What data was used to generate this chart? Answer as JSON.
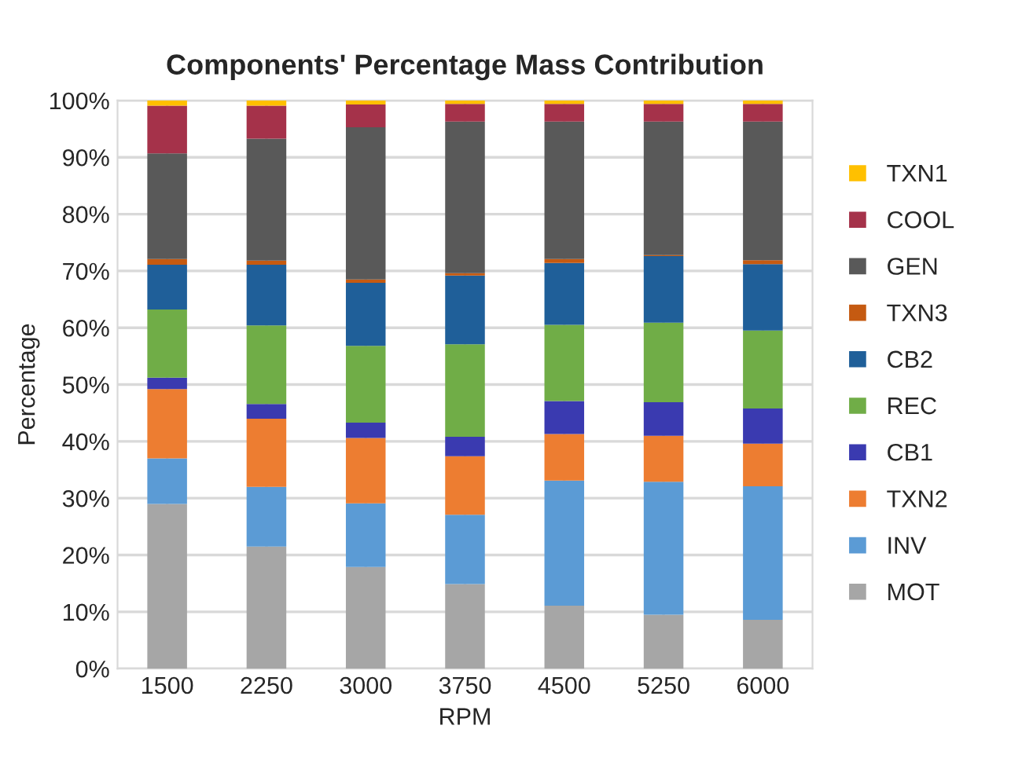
{
  "chart_data": {
    "type": "bar",
    "stacked": true,
    "title": "Components' Percentage Mass Contribution",
    "xlabel": "RPM",
    "ylabel": "Percentage",
    "categories": [
      "1500",
      "2250",
      "3000",
      "3750",
      "4500",
      "5250",
      "6000"
    ],
    "series": [
      {
        "name": "MOT",
        "color": "#a6a6a6",
        "values": [
          29,
          21.5,
          17.9,
          14.9,
          11.1,
          9.5,
          8.6
        ]
      },
      {
        "name": "INV",
        "color": "#5b9bd5",
        "values": [
          8,
          10.5,
          11.2,
          12.2,
          22,
          23.4,
          23.5
        ]
      },
      {
        "name": "TXN2",
        "color": "#ed7d31",
        "values": [
          12.2,
          12,
          11.5,
          10.3,
          8.2,
          8.1,
          7.5
        ]
      },
      {
        "name": "CB1",
        "color": "#3a3ab0",
        "values": [
          2,
          2.6,
          2.7,
          3.4,
          5.8,
          5.9,
          6.2
        ]
      },
      {
        "name": "REC",
        "color": "#70ad47",
        "values": [
          12,
          13.8,
          13.5,
          16.3,
          13.4,
          14,
          13.7
        ]
      },
      {
        "name": "CB2",
        "color": "#1f5f99",
        "values": [
          7.9,
          10.7,
          11.1,
          12.1,
          10.9,
          11.7,
          11.7
        ]
      },
      {
        "name": "TXN3",
        "color": "#c55a11",
        "values": [
          1,
          0.7,
          0.6,
          0.4,
          0.7,
          0.2,
          0.7
        ]
      },
      {
        "name": "GEN",
        "color": "#595959",
        "values": [
          18.6,
          21.5,
          26.8,
          26.7,
          24.2,
          23.5,
          24.4
        ]
      },
      {
        "name": "COOL",
        "color": "#a5324a",
        "values": [
          8.4,
          5.8,
          4,
          3.1,
          3.1,
          3.1,
          3.1
        ]
      },
      {
        "name": "TXN1",
        "color": "#ffc000",
        "values": [
          0.9,
          0.9,
          0.7,
          0.6,
          0.6,
          0.6,
          0.6
        ]
      }
    ],
    "ylim": [
      0,
      100
    ],
    "yticks": [
      {
        "value": 0,
        "label": "0%"
      },
      {
        "value": 10,
        "label": "10%"
      },
      {
        "value": 20,
        "label": "20%"
      },
      {
        "value": 30,
        "label": "30%"
      },
      {
        "value": 40,
        "label": "40%"
      },
      {
        "value": 50,
        "label": "50%"
      },
      {
        "value": 60,
        "label": "60%"
      },
      {
        "value": 70,
        "label": "70%"
      },
      {
        "value": 80,
        "label": "80%"
      },
      {
        "value": 90,
        "label": "90%"
      },
      {
        "value": 100,
        "label": "100%"
      }
    ],
    "grid": true,
    "legend": "right"
  }
}
